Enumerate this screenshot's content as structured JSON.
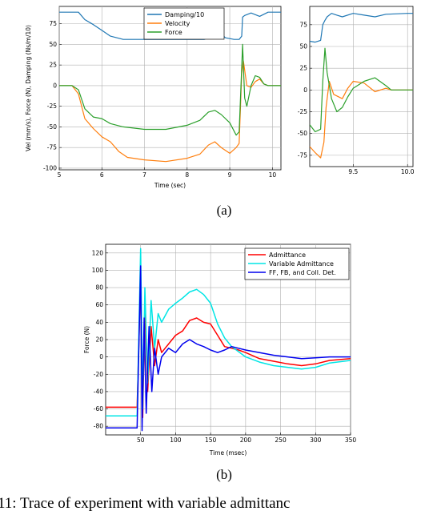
{
  "chart_data": [
    {
      "type": "line",
      "panel_label": "(a)",
      "xlabel": "Time (sec)",
      "ylabel": "Vel (mm/s), Force (N), Damping (Ns/m/10)",
      "xlim": [
        5,
        10.2
      ],
      "ylim": [
        -102,
        96
      ],
      "xticks": [
        "5",
        "6",
        "7",
        "8",
        "9",
        "10"
      ],
      "yticks": [
        "75",
        "50",
        "25",
        "0",
        "-25",
        "-50",
        "-75",
        "-100"
      ],
      "grid": true,
      "legend": "top-center",
      "series": [
        {
          "name": "Damping/10",
          "color": "#1f77b4",
          "x": [
            5.0,
            5.45,
            5.6,
            5.8,
            6.0,
            6.2,
            6.5,
            7.0,
            7.5,
            8.0,
            8.4,
            8.6,
            8.7,
            8.9,
            9.1,
            9.22,
            9.28,
            9.3,
            9.35,
            9.5,
            9.7,
            9.9,
            10.2
          ],
          "y": [
            89,
            89,
            80,
            74,
            67,
            60,
            56,
            56,
            56,
            56,
            56,
            60,
            66,
            58,
            56,
            56,
            60,
            83,
            85,
            88,
            84,
            89,
            89
          ]
        },
        {
          "name": "Velocity",
          "color": "#ff7f0e",
          "x": [
            5.0,
            5.3,
            5.45,
            5.6,
            5.8,
            6.0,
            6.2,
            6.4,
            6.6,
            7.0,
            7.5,
            8.0,
            8.3,
            8.5,
            8.65,
            8.8,
            9.0,
            9.15,
            9.22,
            9.28,
            9.32,
            9.4,
            9.5,
            9.6,
            9.7,
            9.8,
            9.9,
            10.2
          ],
          "y": [
            0,
            0,
            -10,
            -40,
            -52,
            -62,
            -68,
            -80,
            -87,
            -90,
            -92,
            -88,
            -83,
            -72,
            -68,
            -75,
            -82,
            -75,
            -70,
            15,
            30,
            0,
            -2,
            5,
            8,
            2,
            0,
            0
          ]
        },
        {
          "name": "Force",
          "color": "#2ca02c",
          "x": [
            5.0,
            5.3,
            5.45,
            5.6,
            5.8,
            6.0,
            6.2,
            6.5,
            7.0,
            7.5,
            8.0,
            8.3,
            8.5,
            8.65,
            8.8,
            9.0,
            9.15,
            9.22,
            9.27,
            9.3,
            9.35,
            9.4,
            9.5,
            9.6,
            9.7,
            9.8,
            9.9,
            10.2
          ],
          "y": [
            0,
            0,
            -5,
            -28,
            -38,
            -40,
            -46,
            -50,
            -53,
            -53,
            -48,
            -42,
            -32,
            -30,
            -35,
            -45,
            -60,
            -56,
            10,
            50,
            -15,
            -25,
            0,
            12,
            10,
            2,
            0,
            0
          ]
        }
      ]
    },
    {
      "type": "line",
      "panel_label": "(a)",
      "xlim": [
        9.1,
        10.05
      ],
      "ylim": [
        -88,
        96
      ],
      "xticks": [
        "9.5",
        "10.0"
      ],
      "yticks": [
        "75",
        "50",
        "25",
        "0",
        "-25",
        "-50",
        "-75"
      ],
      "grid": true,
      "series": [
        {
          "name": "Damping/10",
          "color": "#1f77b4",
          "x": [
            9.1,
            9.15,
            9.2,
            9.22,
            9.24,
            9.26,
            9.3,
            9.35,
            9.4,
            9.5,
            9.6,
            9.7,
            9.8,
            10.0,
            10.05
          ],
          "y": [
            56,
            55,
            57,
            75,
            80,
            84,
            88,
            86,
            84,
            88,
            86,
            84,
            87,
            88,
            88
          ]
        },
        {
          "name": "Velocity",
          "color": "#ff7f0e",
          "x": [
            9.1,
            9.15,
            9.2,
            9.23,
            9.25,
            9.28,
            9.32,
            9.4,
            9.45,
            9.5,
            9.6,
            9.7,
            9.8,
            9.85,
            10.05
          ],
          "y": [
            -65,
            -72,
            -78,
            -60,
            -20,
            10,
            -5,
            -10,
            2,
            10,
            8,
            -2,
            2,
            0,
            0
          ]
        },
        {
          "name": "Force",
          "color": "#2ca02c",
          "x": [
            9.1,
            9.15,
            9.2,
            9.22,
            9.24,
            9.26,
            9.3,
            9.35,
            9.4,
            9.45,
            9.5,
            9.6,
            9.7,
            9.8,
            9.85,
            10.05
          ],
          "y": [
            -40,
            -48,
            -45,
            10,
            48,
            20,
            -10,
            -25,
            -20,
            -8,
            2,
            10,
            14,
            5,
            0,
            0
          ]
        }
      ]
    },
    {
      "type": "line",
      "panel_label": "(b)",
      "xlabel": "Time (msec)",
      "ylabel": "Force (N)",
      "xlim": [
        0,
        350
      ],
      "ylim": [
        -90,
        130
      ],
      "xticks": [
        "50",
        "100",
        "150",
        "200",
        "250",
        "300",
        "350"
      ],
      "yticks": [
        "120",
        "100",
        "80",
        "60",
        "40",
        "20",
        "0",
        "-20",
        "-40",
        "-60",
        "-80"
      ],
      "grid": true,
      "legend": "top-right",
      "series": [
        {
          "name": "Admittance",
          "color": "#ff0000",
          "x": [
            0,
            45,
            50,
            53,
            56,
            60,
            65,
            70,
            75,
            80,
            90,
            100,
            110,
            120,
            130,
            140,
            150,
            160,
            170,
            180,
            190,
            200,
            220,
            240,
            260,
            280,
            300,
            320,
            350
          ],
          "y": [
            -58,
            -58,
            90,
            -70,
            60,
            -40,
            35,
            -10,
            20,
            5,
            15,
            25,
            30,
            42,
            45,
            40,
            38,
            25,
            12,
            10,
            8,
            5,
            -2,
            -5,
            -8,
            -10,
            -8,
            -4,
            -2
          ]
        },
        {
          "name": "Variable Admittance",
          "color": "#00e5e5",
          "x": [
            0,
            45,
            50,
            53,
            56,
            60,
            65,
            70,
            75,
            80,
            90,
            100,
            110,
            120,
            130,
            140,
            150,
            160,
            170,
            180,
            190,
            200,
            220,
            240,
            260,
            280,
            300,
            320,
            350
          ],
          "y": [
            -68,
            -68,
            125,
            -60,
            80,
            -30,
            65,
            10,
            50,
            40,
            55,
            62,
            68,
            75,
            78,
            72,
            62,
            38,
            22,
            12,
            6,
            0,
            -6,
            -10,
            -12,
            -14,
            -12,
            -7,
            -4
          ]
        },
        {
          "name": "FF, FB, and Coll. Det.",
          "color": "#0000ee",
          "x": [
            0,
            45,
            50,
            52,
            55,
            58,
            62,
            66,
            70,
            75,
            80,
            90,
            100,
            110,
            120,
            130,
            140,
            150,
            160,
            170,
            180,
            190,
            200,
            220,
            240,
            260,
            280,
            300,
            320,
            350
          ],
          "y": [
            -82,
            -82,
            105,
            -85,
            45,
            -65,
            35,
            -40,
            10,
            -20,
            0,
            10,
            5,
            15,
            20,
            15,
            12,
            8,
            5,
            8,
            12,
            10,
            8,
            5,
            2,
            0,
            -2,
            -1,
            0,
            0
          ]
        }
      ]
    }
  ],
  "figure": {
    "label_a": "(a)",
    "label_b": "(b)",
    "caption": "11: Trace of experiment with variable admittanc"
  }
}
